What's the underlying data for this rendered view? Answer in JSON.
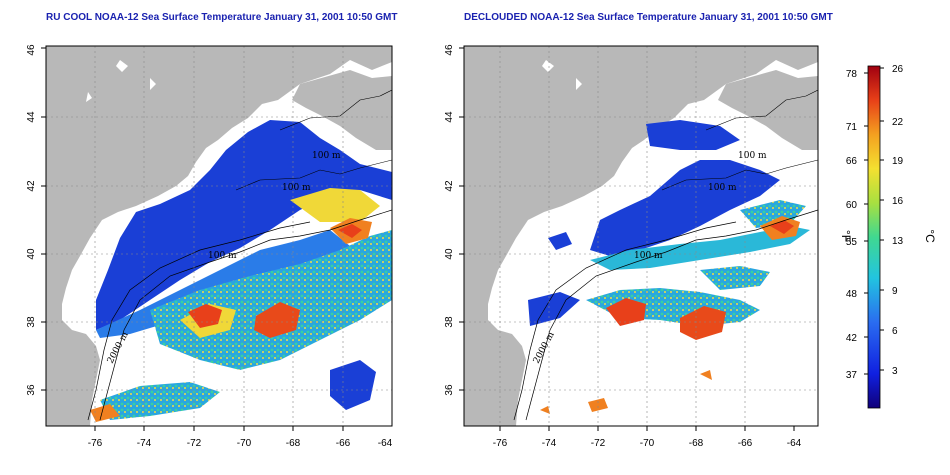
{
  "maps": [
    {
      "title": "RU COOL NOAA-12 Sea Surface Temperature January 31, 2001 10:50 GMT",
      "contour_labels": [
        "100 m",
        "100 m",
        "100 m",
        "2000 m"
      ]
    },
    {
      "title": "DECLOUDED NOAA-12 Sea Surface Temperature January 31, 2001 10:50 GMT",
      "contour_labels": [
        "100 m",
        "100 m",
        "100 m",
        "2000 m"
      ]
    }
  ],
  "axes": {
    "x_ticks": [
      "-76",
      "-74",
      "-72",
      "-70",
      "-68",
      "-66",
      "-64"
    ],
    "y_ticks": [
      "36",
      "38",
      "40",
      "42",
      "44",
      "46"
    ]
  },
  "colorbar": {
    "unit_f": "°F",
    "unit_c": "°C",
    "f_ticks": [
      "78",
      "71",
      "66",
      "60",
      "55",
      "48",
      "42",
      "37"
    ],
    "c_ticks": [
      "26",
      "22",
      "19",
      "16",
      "13",
      "9",
      "6",
      "3"
    ]
  },
  "colors": {
    "land": "#b8b8b8",
    "cold": "#1a3fd6",
    "mid": "#2ab8d8",
    "warm": "#f2e23a",
    "hot": "#e8401a",
    "title": "#1a22b0"
  }
}
